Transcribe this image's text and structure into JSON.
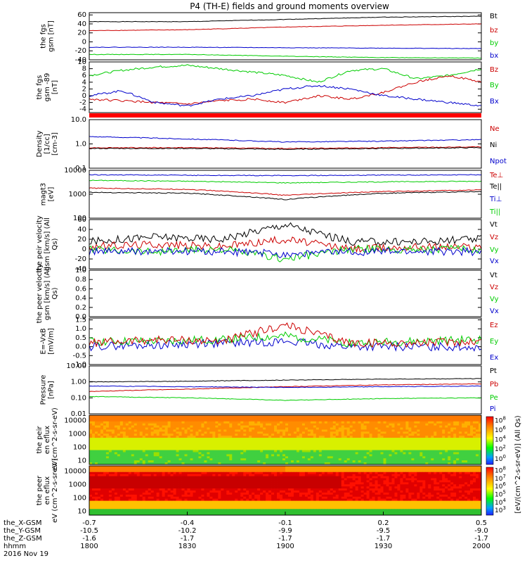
{
  "title": "P4 (TH-E) fields and ground moments overview",
  "footer": {
    "coord_labels": [
      "the_X-GSM",
      "the_Y-GSM",
      "the_Z-GSM",
      "hhmm",
      "2016 Nov 19"
    ],
    "time_ticks": [
      "1800",
      "1830",
      "1900",
      "1930",
      "2000"
    ],
    "x_gsm": [
      "-0.7",
      "-0.4",
      "-0.1",
      "0.2",
      "0.5"
    ],
    "y_gsm": [
      "-10.5",
      "-10.2",
      "-9.9",
      "-9.5",
      "-9.0"
    ],
    "z_gsm": [
      "-1.6",
      "-1.7",
      "-1.7",
      "-1.7",
      "-1.7"
    ]
  },
  "spectro_colorbar": {
    "label": "[eV/(cm^2-s-sr-eV)] (All Qs)",
    "top_ticks": [
      "10^8",
      "10^6",
      "10^4",
      "10^2",
      "10^0"
    ],
    "bottom_ticks": [
      "10^8",
      "10^7",
      "10^6",
      "10^5",
      "10^4",
      "10^3"
    ]
  },
  "chart_data": [
    {
      "type": "line",
      "ylabel": "the fgs gsm [nT]",
      "yticks": [
        "60",
        "40",
        "20",
        "0",
        "-20",
        "-40"
      ],
      "ylim": [
        -40,
        65
      ],
      "scale": "linear",
      "legend": [
        {
          "name": "Bt",
          "color": "#000000"
        },
        {
          "name": "bz",
          "color": "#cc0000"
        },
        {
          "name": "by",
          "color": "#00cc00"
        },
        {
          "name": "bx",
          "color": "#0000cc"
        }
      ],
      "series": [
        {
          "name": "Bt",
          "color": "#000000",
          "x": [
            0,
            30,
            60,
            90,
            120
          ],
          "values": [
            45,
            45,
            50,
            55,
            57
          ]
        },
        {
          "name": "bz",
          "color": "#cc0000",
          "x": [
            0,
            30,
            60,
            90,
            120
          ],
          "values": [
            25,
            27,
            33,
            37,
            40
          ]
        },
        {
          "name": "by",
          "color": "#00cc00",
          "x": [
            0,
            30,
            60,
            90,
            120
          ],
          "values": [
            -28,
            -28,
            -32,
            -35,
            -36
          ]
        },
        {
          "name": "bx",
          "color": "#0000cc",
          "x": [
            0,
            30,
            60,
            90,
            120
          ],
          "values": [
            -12,
            -12,
            -13,
            -14,
            -15
          ]
        }
      ]
    },
    {
      "type": "line",
      "ylabel": "the fgs gsm -89 [nT]",
      "yticks": [
        "10",
        "8",
        "6",
        "4",
        "2",
        "0",
        "-2",
        "-4"
      ],
      "ylim": [
        -5,
        10
      ],
      "scale": "linear",
      "legend": [
        {
          "name": "Bz",
          "color": "#cc0000"
        },
        {
          "name": "By",
          "color": "#00cc00"
        },
        {
          "name": "Bx",
          "color": "#0000cc"
        }
      ],
      "series": [
        {
          "name": "By",
          "color": "#00cc00",
          "x": [
            0,
            10,
            20,
            30,
            40,
            50,
            60,
            70,
            80,
            90,
            100,
            110,
            120
          ],
          "values": [
            6,
            7.5,
            8.5,
            9,
            8,
            7,
            6,
            4,
            7.5,
            8,
            5,
            6,
            8
          ]
        },
        {
          "name": "Bz",
          "color": "#cc0000",
          "x": [
            0,
            10,
            20,
            30,
            40,
            50,
            60,
            70,
            80,
            90,
            100,
            110,
            120
          ],
          "values": [
            -1,
            -1.5,
            -2,
            -2.5,
            -1.5,
            -1,
            -2,
            0,
            -1,
            1,
            4,
            6,
            4
          ]
        },
        {
          "name": "Bx",
          "color": "#0000cc",
          "x": [
            0,
            10,
            20,
            30,
            40,
            50,
            60,
            70,
            80,
            90,
            100,
            110,
            120
          ],
          "values": [
            0,
            1.5,
            -2,
            -3,
            -1,
            0,
            2,
            3,
            2,
            0,
            -1,
            -2,
            -3
          ]
        }
      ]
    },
    {
      "type": "line",
      "ylabel": "Density [1/cc] [cm-3]",
      "yticks": [
        "10.0",
        "1.0",
        "0.1"
      ],
      "ylim": [
        0.1,
        10
      ],
      "scale": "log",
      "legend": [
        {
          "name": "Ne",
          "color": "#cc0000"
        },
        {
          "name": "Ni",
          "color": "#000000"
        },
        {
          "name": "Npot",
          "color": "#0000cc"
        }
      ],
      "series": [
        {
          "name": "Npot",
          "color": "#0000cc",
          "x": [
            0,
            30,
            60,
            90,
            120
          ],
          "values": [
            2,
            1.6,
            1.2,
            1.3,
            1.5
          ]
        },
        {
          "name": "Ne",
          "color": "#cc0000",
          "x": [
            0,
            30,
            60,
            90,
            120
          ],
          "values": [
            0.7,
            0.7,
            0.65,
            0.7,
            0.75
          ]
        },
        {
          "name": "Ni",
          "color": "#000000",
          "x": [
            0,
            30,
            60,
            90,
            120
          ],
          "values": [
            0.65,
            0.65,
            0.6,
            0.65,
            0.7
          ]
        }
      ]
    },
    {
      "type": "line",
      "ylabel": "magt3 [eV]",
      "yticks": [
        "10000",
        "1000",
        "100"
      ],
      "ylim": [
        100,
        10000
      ],
      "scale": "log",
      "legend": [
        {
          "name": "Te⊥",
          "color": "#cc0000"
        },
        {
          "name": "Te||",
          "color": "#000000"
        },
        {
          "name": "Ti⊥",
          "color": "#0000cc"
        },
        {
          "name": "Ti||",
          "color": "#00cc00"
        }
      ],
      "series": [
        {
          "name": "Ti⊥",
          "color": "#0000cc",
          "x": [
            0,
            30,
            60,
            90,
            120
          ],
          "values": [
            6500,
            6200,
            6000,
            6300,
            6500
          ]
        },
        {
          "name": "Ti||",
          "color": "#00cc00",
          "x": [
            0,
            30,
            60,
            90,
            120
          ],
          "values": [
            3800,
            3500,
            3000,
            3300,
            3500
          ]
        },
        {
          "name": "Te⊥",
          "color": "#cc0000",
          "x": [
            0,
            30,
            60,
            90,
            120
          ],
          "values": [
            1800,
            1600,
            900,
            1300,
            1500
          ]
        },
        {
          "name": "Te||",
          "color": "#000000",
          "x": [
            0,
            30,
            60,
            90,
            120
          ],
          "values": [
            1200,
            1100,
            600,
            1100,
            1300
          ]
        }
      ]
    },
    {
      "type": "line",
      "ylabel": "the peir velocity gsm [km/s] (All Qs)",
      "yticks": [
        "60",
        "40",
        "20",
        "0",
        "-20",
        "-40"
      ],
      "ylim": [
        -40,
        60
      ],
      "scale": "linear",
      "legend": [
        {
          "name": "Vt",
          "color": "#000000"
        },
        {
          "name": "Vz",
          "color": "#cc0000"
        },
        {
          "name": "Vy",
          "color": "#00cc00"
        },
        {
          "name": "Vx",
          "color": "#0000cc"
        }
      ],
      "series": [
        {
          "name": "Vt",
          "color": "#000000",
          "x": [
            0,
            20,
            40,
            60,
            80,
            100,
            120
          ],
          "values": [
            15,
            25,
            20,
            50,
            15,
            15,
            20
          ]
        },
        {
          "name": "Vz",
          "color": "#cc0000",
          "x": [
            0,
            20,
            40,
            60,
            80,
            100,
            120
          ],
          "values": [
            5,
            10,
            5,
            20,
            0,
            5,
            5
          ]
        },
        {
          "name": "Vy",
          "color": "#00cc00",
          "x": [
            0,
            20,
            40,
            60,
            80,
            100,
            120
          ],
          "values": [
            0,
            -5,
            0,
            -20,
            0,
            0,
            0
          ]
        },
        {
          "name": "Vx",
          "color": "#0000cc",
          "x": [
            0,
            20,
            40,
            60,
            80,
            100,
            120
          ],
          "values": [
            -5,
            -5,
            -5,
            -10,
            -5,
            -5,
            -5
          ]
        }
      ]
    },
    {
      "type": "line",
      "ylabel": "the peer velocity gsm [km/s] (All Qs)",
      "yticks": [
        "1.0",
        "0.8",
        "0.6",
        "0.4",
        "0.2",
        "0.0"
      ],
      "ylim": [
        0,
        1
      ],
      "scale": "linear",
      "legend": [
        {
          "name": "Vt",
          "color": "#000000"
        },
        {
          "name": "Vz",
          "color": "#cc0000"
        },
        {
          "name": "Vy",
          "color": "#00cc00"
        },
        {
          "name": "Vx",
          "color": "#0000cc"
        }
      ],
      "series": []
    },
    {
      "type": "line",
      "ylabel": "E=-VxB [mV/m]",
      "yticks": [
        "1.5",
        "1.0",
        "0.5",
        "0.0",
        "-0.5",
        "-1.0"
      ],
      "ylim": [
        -1,
        1.6
      ],
      "scale": "linear",
      "legend": [
        {
          "name": "Ez",
          "color": "#cc0000"
        },
        {
          "name": "Ey",
          "color": "#00cc00"
        },
        {
          "name": "Ex",
          "color": "#0000cc"
        }
      ],
      "series": [
        {
          "name": "Ex",
          "color": "#0000cc",
          "x": [
            0,
            20,
            40,
            60,
            80,
            100,
            120
          ],
          "values": [
            0,
            0.1,
            0.2,
            0.3,
            0,
            0,
            0
          ]
        },
        {
          "name": "Ey",
          "color": "#00cc00",
          "x": [
            0,
            20,
            40,
            60,
            80,
            100,
            120
          ],
          "values": [
            0.3,
            0.3,
            0.4,
            0.6,
            0.2,
            0.3,
            0.4
          ]
        },
        {
          "name": "Ez",
          "color": "#cc0000",
          "x": [
            0,
            20,
            40,
            60,
            80,
            100,
            120
          ],
          "values": [
            0.2,
            0.4,
            0.3,
            1.2,
            0.2,
            0.2,
            0.3
          ]
        }
      ]
    },
    {
      "type": "line",
      "ylabel": "Pressure [nPa]",
      "yticks": [
        "10.00",
        "1.00",
        "0.10",
        "0.01"
      ],
      "ylim": [
        0.01,
        10
      ],
      "scale": "log",
      "legend": [
        {
          "name": "Pt",
          "color": "#000000"
        },
        {
          "name": "Pb",
          "color": "#cc0000"
        },
        {
          "name": "Pe",
          "color": "#00cc00"
        },
        {
          "name": "Pi",
          "color": "#0000cc"
        }
      ],
      "series": [
        {
          "name": "Pt",
          "color": "#000000",
          "x": [
            0,
            30,
            60,
            90,
            120
          ],
          "values": [
            1,
            1.1,
            1.3,
            1.5,
            1.6
          ]
        },
        {
          "name": "Pb",
          "color": "#cc0000",
          "x": [
            0,
            30,
            60,
            90,
            120
          ],
          "values": [
            0.25,
            0.35,
            0.5,
            0.65,
            0.75
          ]
        },
        {
          "name": "Pi",
          "color": "#0000cc",
          "x": [
            0,
            30,
            60,
            90,
            120
          ],
          "values": [
            0.55,
            0.5,
            0.45,
            0.5,
            0.55
          ]
        },
        {
          "name": "Pe",
          "color": "#00cc00",
          "x": [
            0,
            30,
            60,
            90,
            120
          ],
          "values": [
            0.12,
            0.1,
            0.07,
            0.09,
            0.1
          ]
        }
      ]
    },
    {
      "type": "heatmap",
      "ylabel": "the peir en eflux eV (cm^2-s-sr-eV)",
      "yticks": [
        "10000",
        "1000",
        "100",
        "10"
      ],
      "ylim": [
        5,
        25000
      ],
      "scale": "log"
    },
    {
      "type": "heatmap",
      "ylabel": "the peer en eflux eV (cm^2-s-sr-eV)",
      "yticks": [
        "10000",
        "1000",
        "100",
        "10"
      ],
      "ylim": [
        5,
        25000
      ],
      "scale": "log"
    }
  ]
}
